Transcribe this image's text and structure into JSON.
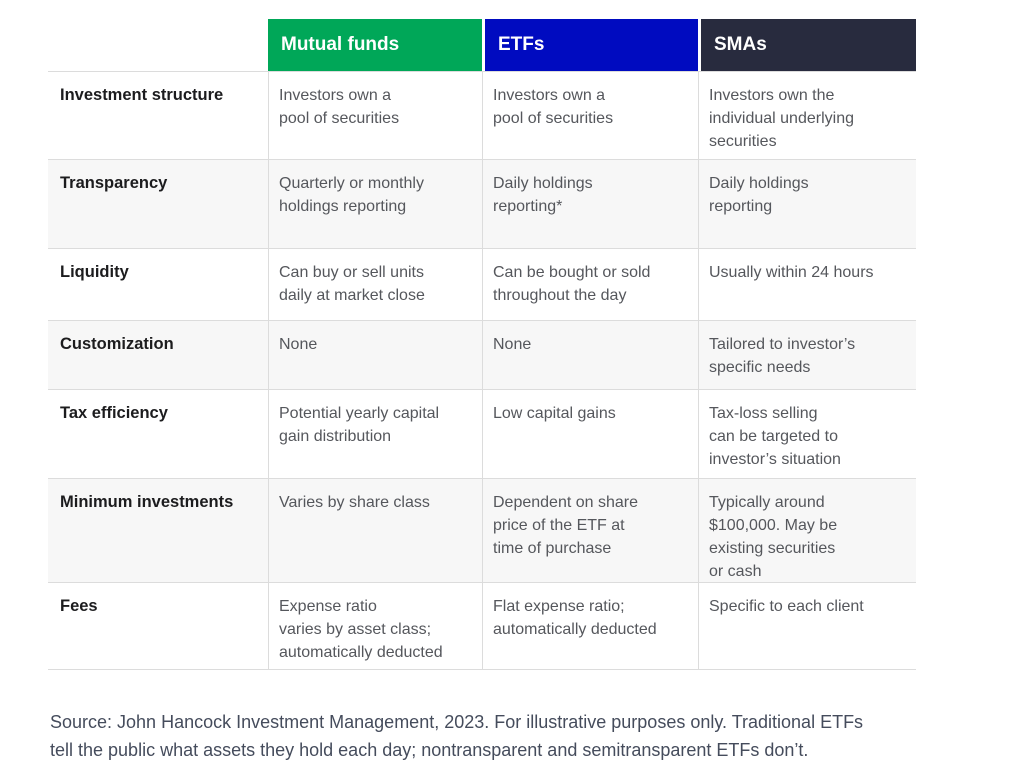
{
  "table": {
    "columns": [
      {
        "label": "Mutual funds",
        "color": "#00a758"
      },
      {
        "label": "ETFs",
        "color": "#000bc0"
      },
      {
        "label": "SMAs",
        "color": "#282b3e"
      }
    ],
    "row_shade_color": "#f7f7f7",
    "rows": [
      {
        "label": "Investment structure",
        "mutual_funds": "Investors own a\npool of securities",
        "etfs": "Investors own a\npool of securities",
        "smas": "Investors own the\nindividual underlying\nsecurities"
      },
      {
        "label": "Transparency",
        "mutual_funds": "Quarterly or monthly\nholdings reporting",
        "etfs": "Daily holdings\nreporting*",
        "smas": "Daily holdings\nreporting"
      },
      {
        "label": "Liquidity",
        "mutual_funds": "Can buy or sell units\ndaily at market close",
        "etfs": "Can be bought or sold\nthroughout the day",
        "smas": "Usually within 24 hours"
      },
      {
        "label": "Customization",
        "mutual_funds": "None",
        "etfs": "None",
        "smas": "Tailored to investor’s\nspecific needs"
      },
      {
        "label": "Tax efficiency",
        "mutual_funds": "Potential yearly capital\ngain distribution",
        "etfs": "Low capital gains",
        "smas": "Tax-loss selling\ncan be targeted to\ninvestor’s situation"
      },
      {
        "label": "Minimum investments",
        "mutual_funds": "Varies by share class",
        "etfs": "Dependent on share\nprice of the ETF at\ntime of purchase",
        "smas": "Typically around\n$100,000. May be\nexisting securities\nor cash"
      },
      {
        "label": "Fees",
        "mutual_funds": "Expense ratio\nvaries by asset class;\nautomatically deducted",
        "etfs": "Flat expense ratio;\nautomatically deducted",
        "smas": "Specific to each client"
      }
    ]
  },
  "source_note": "Source: John Hancock Investment Management, 2023. For illustrative purposes only. Traditional ETFs\ntell the public what assets they hold each day; nontransparent and semitransparent ETFs don’t."
}
